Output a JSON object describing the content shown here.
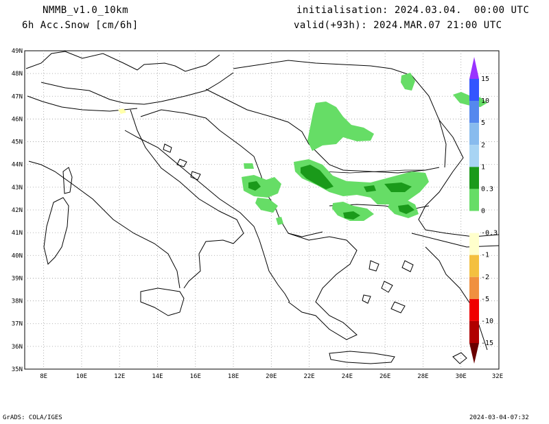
{
  "header": {
    "model": "NMMB_v1.0_10km",
    "field": "6h Acc.Snow [cm/6h]",
    "initialisation": "initialisation: 2024.03.04.  00:00 UTC",
    "valid": "valid(+93h): 2024.MAR.07 21:00 UTC"
  },
  "footer": {
    "credit": "GrADS: COLA/IGES",
    "timestamp": "2024-03-04-07:32"
  },
  "map": {
    "lat_labels": [
      "49N",
      "48N",
      "47N",
      "46N",
      "45N",
      "44N",
      "43N",
      "42N",
      "41N",
      "40N",
      "39N",
      "38N",
      "37N",
      "36N",
      "35N"
    ],
    "lon_labels": [
      "8E",
      "10E",
      "12E",
      "14E",
      "16E",
      "18E",
      "20E",
      "22E",
      "24E",
      "26E",
      "28E",
      "30E",
      "32E"
    ],
    "lat_range": [
      35,
      49
    ],
    "lon_range": [
      7,
      32
    ]
  },
  "colorbar": {
    "labels": [
      "15",
      "10",
      "5",
      "2",
      "1",
      "0.3",
      "0",
      "-0.3",
      "-1",
      "-2",
      "-5",
      "-10",
      "-15"
    ],
    "colors": [
      "#9933ff",
      "#3355ff",
      "#5588ee",
      "#88bbee",
      "#a8d4f4",
      "#1a9a1a",
      "#66dd66",
      "#ffffff",
      "#ffffcc",
      "#f4c040",
      "#f09040",
      "#f00000",
      "#b00000",
      "#6a0000"
    ]
  },
  "snow_colors": {
    "light": "#66dd66",
    "medium": "#1a9a1a",
    "heavy": "#0a6a0a",
    "trace": "#ffffaa"
  }
}
